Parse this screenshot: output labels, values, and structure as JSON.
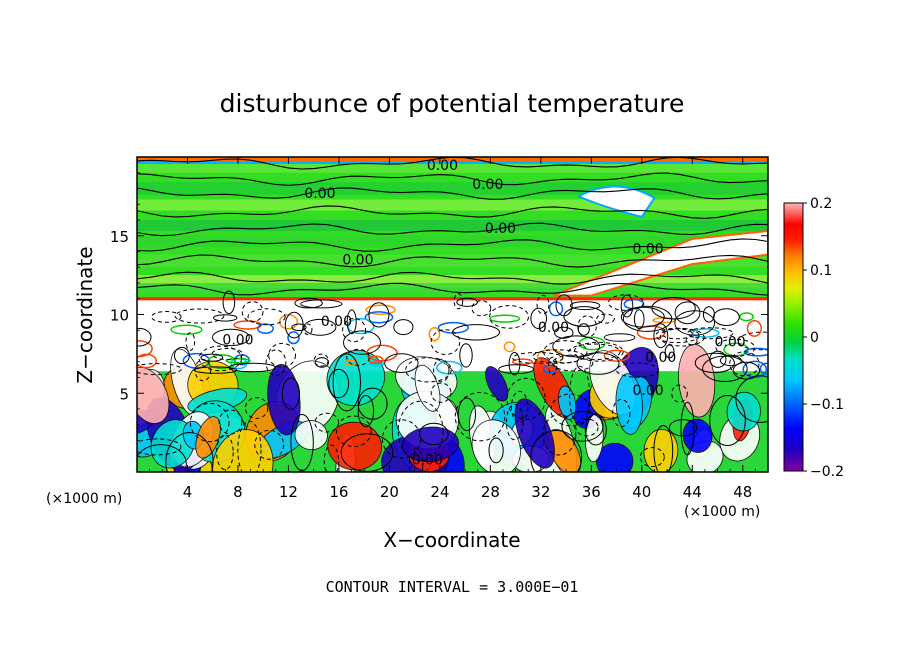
{
  "chart_data": {
    "type": "heatmap",
    "title": "disturbunce of potential temperature",
    "xlabel": "X−coordinate",
    "ylabel": "Z−coordinate",
    "x_unit_left": "(×1000 m)",
    "x_unit_right": "(×1000 m)",
    "xlim": [
      0,
      50
    ],
    "ylim": [
      0,
      20
    ],
    "x_ticks": [
      4,
      8,
      12,
      16,
      20,
      24,
      28,
      32,
      36,
      40,
      44,
      48
    ],
    "y_ticks": [
      5,
      10,
      15
    ],
    "contour_interval_text": "CONTOUR INTERVAL = 3.000E−01",
    "colorbar": {
      "range": [
        -0.2,
        0.2
      ],
      "tick_values": [
        0.2,
        0.1,
        0,
        -0.1,
        -0.2
      ],
      "tick_labels": [
        "0.2",
        "0.1",
        "0",
        "−0.1",
        "−0.2"
      ],
      "colors": [
        "#8000a0",
        "#3000c0",
        "#0000ff",
        "#0060ff",
        "#00b0ff",
        "#00e0e0",
        "#00e0a0",
        "#00d000",
        "#40e000",
        "#90f000",
        "#d8f000",
        "#ffd000",
        "#ff9000",
        "#ff4000",
        "#ff0000",
        "#ffb0b0"
      ]
    },
    "contour_labels": [
      {
        "text": "0.00",
        "x": 24.2,
        "z": 19.5
      },
      {
        "text": "0.00",
        "x": 27.8,
        "z": 18.3
      },
      {
        "text": "0.00",
        "x": 14.5,
        "z": 17.7
      },
      {
        "text": "0.00",
        "x": 28.8,
        "z": 15.5
      },
      {
        "text": "0.00",
        "x": 40.5,
        "z": 14.2
      },
      {
        "text": "0.00",
        "x": 17.5,
        "z": 13.5
      },
      {
        "text": "0.00",
        "x": 15.8,
        "z": 9.6
      },
      {
        "text": "0.00",
        "x": 33.0,
        "z": 9.2
      },
      {
        "text": "0.00",
        "x": 8.0,
        "z": 8.4
      },
      {
        "text": "0.00",
        "x": 41.5,
        "z": 7.3
      },
      {
        "text": "0.00",
        "x": 47.0,
        "z": 8.3
      },
      {
        "text": "0.00",
        "x": 40.5,
        "z": 5.2
      },
      {
        "text": "0.00",
        "x": 23.0,
        "z": 0.8
      }
    ]
  }
}
